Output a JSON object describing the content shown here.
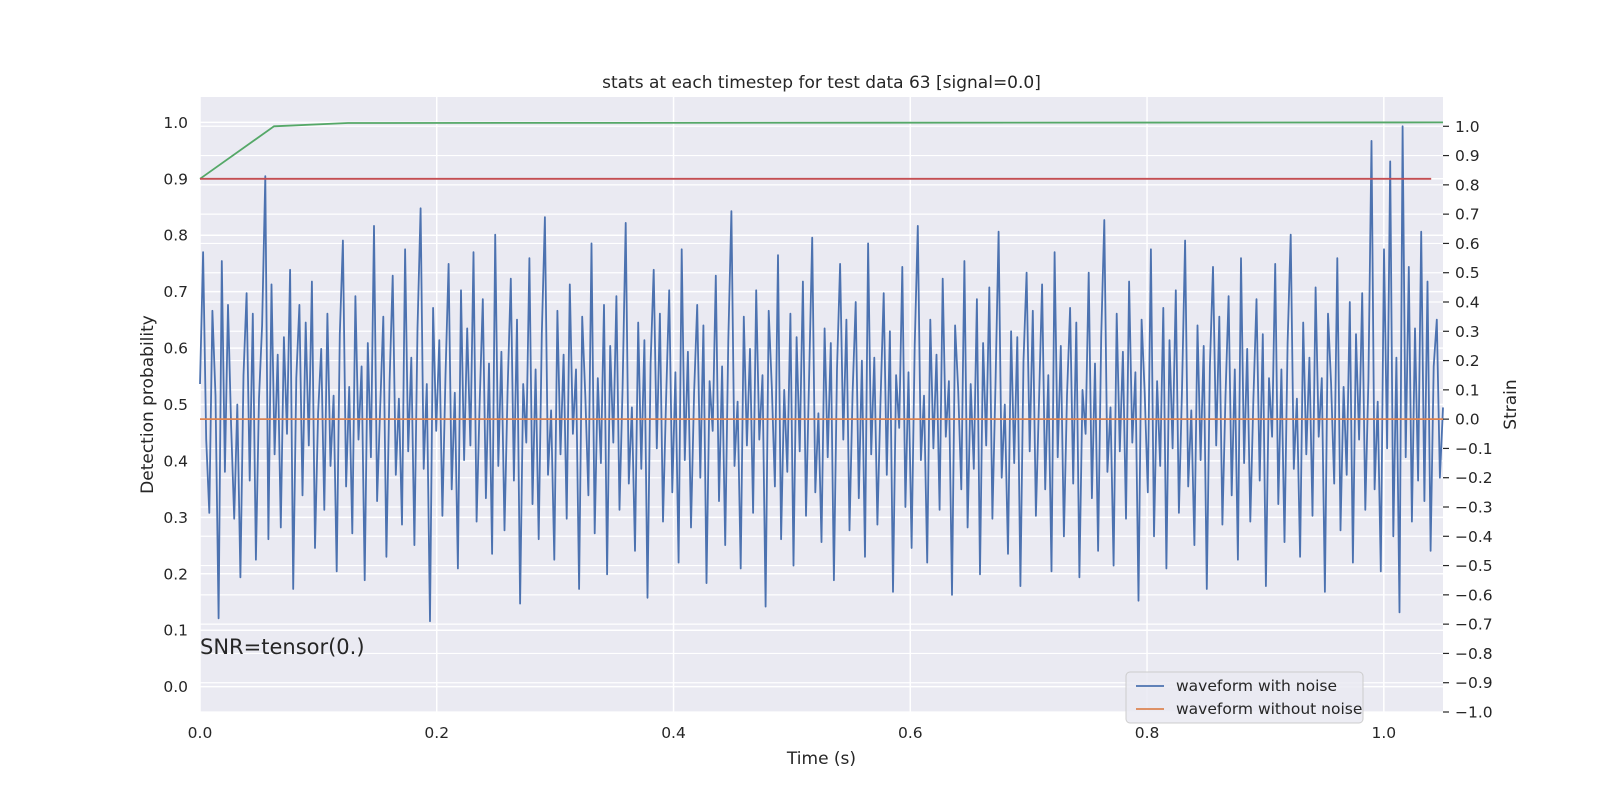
{
  "chart_data": {
    "type": "line",
    "title": "stats at each timestep for test data 63 [signal=0.0]",
    "xlabel": "Time (s)",
    "ylabel_left": "Detection probability",
    "ylabel_right": "Strain",
    "xlim": [
      0.0,
      1.05
    ],
    "ylim_left": [
      -0.045,
      1.045
    ],
    "ylim_right": [
      -1.0,
      1.1
    ],
    "x_ticks": [
      "0.0",
      "0.2",
      "0.4",
      "0.6",
      "0.8",
      "1.0"
    ],
    "x_tick_values": [
      0.0,
      0.2,
      0.4,
      0.6,
      0.8,
      1.0
    ],
    "y_left_ticks": [
      "0.0",
      "0.1",
      "0.2",
      "0.3",
      "0.4",
      "0.5",
      "0.6",
      "0.7",
      "0.8",
      "0.9",
      "1.0"
    ],
    "y_left_tick_values": [
      0.0,
      0.1,
      0.2,
      0.3,
      0.4,
      0.5,
      0.6,
      0.7,
      0.8,
      0.9,
      1.0
    ],
    "y_right_ticks": [
      "−1.0",
      "−0.9",
      "−0.8",
      "−0.7",
      "−0.6",
      "−0.5",
      "−0.4",
      "−0.3",
      "−0.2",
      "−0.1",
      "0.0",
      "0.1",
      "0.2",
      "0.3",
      "0.4",
      "0.5",
      "0.6",
      "0.7",
      "0.8",
      "0.9",
      "1.0"
    ],
    "y_right_tick_values": [
      -1.0,
      -0.9,
      -0.8,
      -0.7,
      -0.6,
      -0.5,
      -0.4,
      -0.3,
      -0.2,
      -0.1,
      0.0,
      0.1,
      0.2,
      0.3,
      0.4,
      0.5,
      0.6,
      0.7,
      0.8,
      0.9,
      1.0
    ],
    "grid": true,
    "legend_position": "bottom-right",
    "annotation": "SNR=tensor(0.)",
    "colors": {
      "background": "#eaeaf2",
      "grid": "#ffffff",
      "waveform_noise": "#4c72b0",
      "waveform_clean": "#dd8452",
      "probability": "#55a868",
      "threshold": "#c44e52"
    },
    "series": [
      {
        "name": "waveform with noise",
        "axis": "right",
        "x_start": 0.0,
        "x_end": 1.05,
        "y": [
          0.12,
          0.57,
          -0.07,
          -0.32,
          0.37,
          0.08,
          -0.68,
          0.54,
          -0.18,
          0.39,
          -0.02,
          -0.34,
          0.05,
          -0.54,
          0.15,
          0.43,
          -0.21,
          0.36,
          -0.48,
          0.07,
          0.32,
          0.83,
          -0.41,
          0.46,
          -0.12,
          0.22,
          -0.37,
          0.28,
          -0.05,
          0.51,
          -0.58,
          0.14,
          0.39,
          -0.26,
          0.33,
          -0.09,
          0.47,
          -0.44,
          0.02,
          0.24,
          -0.31,
          0.36,
          -0.16,
          0.08,
          -0.52,
          0.29,
          0.61,
          -0.23,
          0.11,
          -0.39,
          0.42,
          -0.07,
          0.18,
          -0.55,
          0.26,
          -0.13,
          0.66,
          -0.28,
          0.04,
          0.35,
          -0.47,
          0.13,
          0.49,
          -0.19,
          0.07,
          -0.36,
          0.58,
          -0.11,
          0.21,
          -0.43,
          0.31,
          0.72,
          -0.17,
          0.12,
          -0.69,
          0.38,
          -0.04,
          0.27,
          -0.33,
          0.15,
          0.53,
          -0.24,
          0.09,
          -0.51,
          0.44,
          -0.14,
          0.31,
          -0.09,
          0.57,
          -0.35,
          0.06,
          0.41,
          -0.27,
          0.19,
          -0.46,
          0.63,
          -0.16,
          0.23,
          -0.38,
          0.1,
          0.48,
          -0.21,
          0.34,
          -0.63,
          0.12,
          -0.08,
          0.55,
          -0.29,
          0.17,
          -0.41,
          0.29,
          0.69,
          -0.19,
          0.03,
          -0.48,
          0.37,
          -0.12,
          0.22,
          -0.34,
          0.46,
          -0.05,
          0.17,
          -0.58,
          0.35,
          0.08,
          -0.26,
          0.6,
          -0.39,
          0.14,
          -0.15,
          0.39,
          -0.53,
          0.25,
          -0.08,
          0.42,
          -0.31,
          0.11,
          0.67,
          -0.22,
          0.04,
          -0.45,
          0.33,
          -0.17,
          0.27,
          -0.61,
          0.19,
          0.51,
          -0.1,
          0.36,
          -0.35,
          0.07,
          0.44,
          -0.25,
          0.16,
          -0.49,
          0.58,
          -0.14,
          0.23,
          -0.37,
          0.09,
          0.39,
          -0.2,
          0.32,
          -0.56,
          0.13,
          -0.04,
          0.49,
          -0.28,
          0.18,
          -0.43,
          0.27,
          0.71,
          -0.16,
          0.06,
          -0.51,
          0.35,
          -0.09,
          0.24,
          -0.32,
          0.44,
          -0.07,
          0.15,
          -0.64,
          0.37,
          0.11,
          -0.23,
          0.56,
          -0.41,
          0.1,
          -0.18,
          0.36,
          -0.5,
          0.28,
          -0.11,
          0.47,
          -0.33,
          0.14,
          0.62,
          -0.25,
          0.02,
          -0.42,
          0.31,
          -0.13,
          0.26,
          -0.55,
          0.17,
          0.53,
          -0.07,
          0.34,
          -0.38,
          0.09,
          0.4,
          -0.27,
          0.2,
          -0.47,
          0.6,
          -0.12,
          0.21,
          -0.36,
          0.06,
          0.43,
          -0.19,
          0.3,
          -0.59,
          0.15,
          -0.03,
          0.52,
          -0.3,
          0.16,
          -0.44,
          0.25,
          0.66,
          -0.14,
          0.08,
          -0.49,
          0.34,
          -0.1,
          0.22,
          -0.31,
          0.48,
          -0.06,
          0.13,
          -0.6,
          0.32,
          0.1,
          -0.24,
          0.54,
          -0.37,
          0.12,
          -0.17,
          0.41,
          -0.53,
          0.26,
          -0.09,
          0.45,
          -0.34,
          0.12,
          0.64,
          -0.2,
          0.05,
          -0.46,
          0.3,
          -0.15,
          0.28,
          -0.57,
          0.2,
          0.5,
          -0.11,
          0.37,
          -0.33,
          0.06,
          0.46,
          -0.24,
          0.15,
          -0.52,
          0.57,
          -0.13,
          0.25,
          -0.4,
          0.08,
          0.38,
          -0.22,
          0.33,
          -0.54,
          0.1,
          -0.05,
          0.5,
          -0.27,
          0.19,
          -0.45,
          0.28,
          0.68,
          -0.18,
          0.04,
          -0.5,
          0.36,
          -0.11,
          0.23,
          -0.34,
          0.47,
          -0.08,
          0.16,
          -0.62,
          0.34,
          0.09,
          -0.25,
          0.58,
          -0.4,
          0.13,
          -0.16,
          0.38,
          -0.51,
          0.27,
          -0.1,
          0.44,
          -0.32,
          0.1,
          0.61,
          -0.23,
          0.03,
          -0.43,
          0.32,
          -0.14,
          0.25,
          -0.58,
          0.18,
          0.52,
          -0.09,
          0.35,
          -0.36,
          0.08,
          0.42,
          -0.26,
          0.17,
          -0.48,
          0.55,
          -0.15,
          0.24,
          -0.35,
          0.07,
          0.41,
          -0.21,
          0.29,
          -0.57,
          0.14,
          -0.06,
          0.53,
          -0.29,
          0.17,
          -0.42,
          0.26,
          0.63,
          -0.17,
          0.07,
          -0.47,
          0.33,
          -0.12,
          0.21,
          -0.33,
          0.45,
          -0.06,
          0.14,
          -0.59,
          0.36,
          0.12,
          -0.22,
          0.55,
          -0.38,
          0.11,
          -0.19,
          0.4,
          -0.49,
          0.29,
          -0.07,
          0.43,
          -0.31,
          0.13,
          0.95,
          -0.24,
          0.06,
          -0.52,
          0.58,
          -0.1,
          0.88,
          -0.4,
          0.21,
          -0.66,
          1.0,
          -0.13,
          0.52,
          -0.35,
          0.31,
          -0.21,
          0.64,
          -0.28,
          0.47,
          -0.45,
          0.18,
          0.34,
          -0.2,
          0.04
        ]
      },
      {
        "name": "waveform without noise",
        "axis": "right",
        "x": [
          0.0,
          1.05
        ],
        "y": [
          0.0,
          0.0
        ]
      },
      {
        "name": "",
        "axis": "left",
        "x": [
          0.0,
          0.0625,
          0.125,
          1.05
        ],
        "y": [
          0.9,
          0.993,
          0.999,
          1.0
        ]
      },
      {
        "name": "",
        "axis": "left",
        "x": [
          0.0,
          1.04
        ],
        "y": [
          0.9,
          0.9
        ]
      }
    ]
  }
}
